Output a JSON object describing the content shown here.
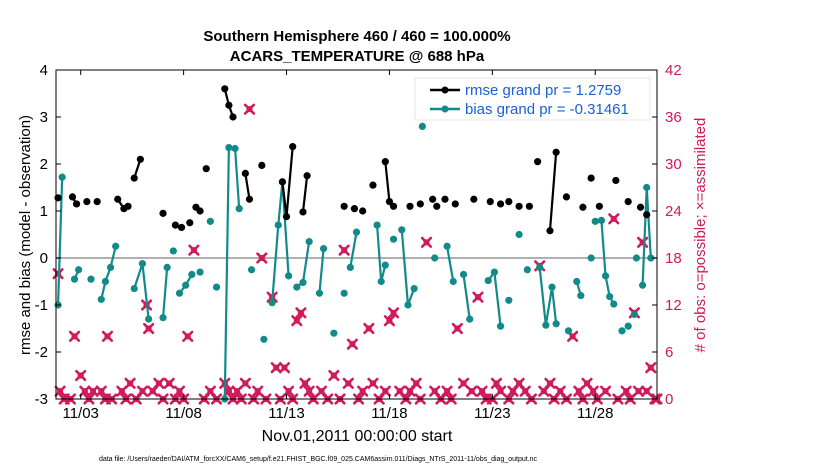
{
  "chart_data": {
    "type": "line",
    "title_line1": "Southern Hemisphere 460 / 460 = 100.000%",
    "title_line2": "ACARS_TEMPERATURE @ 688 hPa",
    "ylabel_left": "rmse and bias (model - observation)",
    "ylabel_right": "# of obs: o=possible; ×=assimilated",
    "xlabel": "Nov.01,2011 00:00:00 start",
    "footnote": "data file: /Users/raeder/DAI/ATM_forcXX/CAM6_setup/f.e21.FHIST_BGC.f09_025.CAM6assim.011/Diags_NTrS_2011-11/obs_diag_output.nc",
    "xlim": [
      1.8,
      31.0
    ],
    "ylim_left": [
      -3,
      4
    ],
    "ylim_right": [
      0,
      42
    ],
    "xticks": [
      3,
      8,
      13,
      18,
      23,
      28
    ],
    "xtick_labels": [
      "11/03",
      "11/08",
      "11/13",
      "11/18",
      "11/23",
      "11/28"
    ],
    "yticks_left": [
      -3,
      -2,
      -1,
      0,
      1,
      2,
      3,
      4
    ],
    "yticks_right": [
      0,
      6,
      12,
      18,
      24,
      30,
      36,
      42
    ],
    "legend": [
      {
        "label": "rmse grand pr = 1.2759",
        "color": "#000000"
      },
      {
        "label": "bias grand pr = -0.31461",
        "color": "#138a8a"
      }
    ],
    "colors": {
      "rmse": "#000000",
      "bias": "#138a8a",
      "obs": "#d01a5a",
      "zero_line": "#b0b0b0"
    },
    "rmse": [
      [
        [
          1.9,
          1.28
        ]
      ],
      [
        [
          2.6,
          1.3
        ],
        [
          2.8,
          1.15
        ]
      ],
      [
        [
          3.3,
          1.2
        ]
      ],
      [
        [
          3.8,
          1.2
        ]
      ],
      [
        [
          4.8,
          1.25
        ],
        [
          5.1,
          1.05
        ],
        [
          5.3,
          1.1
        ]
      ],
      [
        [
          5.6,
          1.7
        ],
        [
          5.9,
          2.1
        ]
      ],
      [
        [
          7.0,
          0.95
        ]
      ],
      [
        [
          7.6,
          0.7
        ],
        [
          7.9,
          0.65
        ]
      ],
      [
        [
          8.3,
          0.75
        ]
      ],
      [
        [
          8.6,
          1.08
        ],
        [
          8.8,
          1.0
        ]
      ],
      [
        [
          9.1,
          1.9
        ]
      ],
      [
        [
          10.0,
          3.6
        ],
        [
          10.2,
          3.25
        ],
        [
          10.4,
          3.0
        ]
      ],
      [
        [
          11.0,
          1.8
        ],
        [
          11.2,
          1.25
        ]
      ],
      [
        [
          11.8,
          1.97
        ]
      ],
      [
        [
          12.8,
          1.62
        ],
        [
          13.0,
          0.88
        ],
        [
          13.3,
          2.37
        ]
      ],
      [
        [
          13.8,
          0.98
        ],
        [
          14.0,
          1.75
        ]
      ],
      [
        [
          15.8,
          1.1
        ]
      ],
      [
        [
          16.3,
          1.05
        ]
      ],
      [
        [
          16.7,
          1.0
        ]
      ],
      [
        [
          17.2,
          1.55
        ]
      ],
      [
        [
          17.8,
          2.05
        ],
        [
          18.0,
          1.2
        ],
        [
          18.2,
          1.1
        ]
      ],
      [
        [
          19.0,
          1.1
        ]
      ],
      [
        [
          19.5,
          1.15
        ]
      ],
      [
        [
          20.1,
          1.25
        ]
      ],
      [
        [
          20.3,
          1.1
        ]
      ],
      [
        [
          20.7,
          1.25
        ]
      ],
      [
        [
          21.2,
          1.15
        ]
      ],
      [
        [
          22.1,
          1.25
        ]
      ],
      [
        [
          22.9,
          1.2
        ]
      ],
      [
        [
          23.4,
          1.15
        ]
      ],
      [
        [
          23.8,
          1.2
        ]
      ],
      [
        [
          24.3,
          1.1
        ]
      ],
      [
        [
          24.8,
          1.1
        ]
      ],
      [
        [
          25.2,
          2.05
        ]
      ],
      [
        [
          25.8,
          0.58
        ],
        [
          26.1,
          2.25
        ]
      ],
      [
        [
          26.6,
          1.3
        ]
      ],
      [
        [
          27.4,
          1.08
        ]
      ],
      [
        [
          27.8,
          1.7
        ]
      ],
      [
        [
          28.2,
          1.1
        ]
      ],
      [
        [
          29.0,
          1.65
        ]
      ],
      [
        [
          29.6,
          1.2
        ]
      ],
      [
        [
          30.2,
          1.08
        ]
      ],
      [
        [
          30.5,
          0.92
        ]
      ]
    ],
    "bias": [
      [
        [
          1.9,
          -1.0
        ],
        [
          2.1,
          1.72
        ]
      ],
      [
        [
          2.7,
          -0.45
        ],
        [
          2.9,
          -0.25
        ]
      ],
      [
        [
          3.5,
          -0.45
        ]
      ],
      [
        [
          4.0,
          -0.88
        ],
        [
          4.2,
          -0.5
        ],
        [
          4.45,
          -0.2
        ],
        [
          4.7,
          0.25
        ]
      ],
      [
        [
          5.6,
          -0.65
        ],
        [
          6.0,
          -0.12
        ],
        [
          6.3,
          -1.3
        ]
      ],
      [
        [
          7.0,
          -1.27
        ],
        [
          7.2,
          -0.2
        ]
      ],
      [
        [
          7.5,
          0.15
        ]
      ],
      [
        [
          7.8,
          -0.75
        ],
        [
          8.1,
          -0.58
        ],
        [
          8.4,
          -0.35
        ]
      ],
      [
        [
          8.8,
          -0.3
        ]
      ],
      [
        [
          9.3,
          0.78
        ]
      ],
      [
        [
          9.6,
          -0.62
        ]
      ],
      [
        [
          10.0,
          -3.0
        ],
        [
          10.2,
          2.35
        ],
        [
          10.5,
          2.33
        ],
        [
          10.7,
          1.05
        ]
      ],
      [
        [
          11.3,
          -0.25
        ]
      ],
      [
        [
          11.9,
          -1.73
        ]
      ],
      [
        [
          12.3,
          -0.95
        ],
        [
          12.6,
          0.7
        ],
        [
          12.8,
          1.62
        ],
        [
          13.1,
          -0.38
        ]
      ],
      [
        [
          13.5,
          -0.62
        ],
        [
          13.8,
          -0.52
        ],
        [
          14.1,
          0.35
        ]
      ],
      [
        [
          14.6,
          -0.75
        ],
        [
          14.8,
          0.2
        ]
      ],
      [
        [
          15.3,
          -1.6
        ]
      ],
      [
        [
          15.8,
          -0.75
        ]
      ],
      [
        [
          16.1,
          -0.2
        ],
        [
          16.4,
          0.55
        ]
      ],
      [
        [
          17.4,
          0.7
        ],
        [
          17.6,
          -0.5
        ],
        [
          17.8,
          -0.15
        ]
      ],
      [
        [
          18.2,
          0.4
        ]
      ],
      [
        [
          18.6,
          0.6
        ],
        [
          18.9,
          -1.0
        ],
        [
          19.2,
          -0.65
        ]
      ],
      [
        [
          19.6,
          2.8
        ]
      ],
      [
        [
          20.2,
          0.0
        ]
      ],
      [
        [
          20.8,
          0.25
        ],
        [
          21.1,
          -0.5
        ]
      ],
      [
        [
          21.6,
          -0.35
        ],
        [
          21.9,
          -1.3
        ]
      ],
      [
        [
          22.8,
          -0.48
        ],
        [
          23.1,
          -0.3
        ],
        [
          23.4,
          -1.45
        ]
      ],
      [
        [
          23.8,
          -0.9
        ]
      ],
      [
        [
          24.3,
          0.5
        ]
      ],
      [
        [
          24.7,
          -0.25
        ]
      ],
      [
        [
          25.3,
          -0.2
        ],
        [
          25.6,
          -1.43
        ],
        [
          25.9,
          -0.62
        ],
        [
          26.1,
          -1.4
        ]
      ],
      [
        [
          26.7,
          -1.55
        ]
      ],
      [
        [
          27.1,
          -0.5
        ],
        [
          27.3,
          -0.8
        ]
      ],
      [
        [
          27.8,
          0.0
        ]
      ],
      [
        [
          28.0,
          0.78
        ],
        [
          28.3,
          0.8
        ],
        [
          28.5,
          -0.38
        ],
        [
          28.7,
          -0.82
        ],
        [
          28.9,
          -0.98
        ]
      ],
      [
        [
          29.3,
          -1.55
        ]
      ],
      [
        [
          29.6,
          -1.45
        ]
      ],
      [
        [
          29.9,
          -1.2
        ]
      ],
      [
        [
          30.0,
          0.0
        ]
      ],
      [
        [
          30.3,
          -0.58
        ],
        [
          30.5,
          1.5
        ],
        [
          30.7,
          0.0
        ]
      ]
    ],
    "obs_assimilated": [
      [
        1.9,
        16
      ],
      [
        2.0,
        1
      ],
      [
        2.2,
        0
      ],
      [
        2.5,
        0
      ],
      [
        2.7,
        8
      ],
      [
        3.0,
        3
      ],
      [
        3.2,
        1
      ],
      [
        3.4,
        0
      ],
      [
        3.6,
        1
      ],
      [
        4.0,
        1
      ],
      [
        4.2,
        0
      ],
      [
        4.3,
        8
      ],
      [
        4.5,
        0
      ],
      [
        5.0,
        1
      ],
      [
        5.2,
        0
      ],
      [
        5.4,
        2
      ],
      [
        5.7,
        0
      ],
      [
        6.0,
        1
      ],
      [
        6.2,
        12
      ],
      [
        6.3,
        9
      ],
      [
        6.5,
        1
      ],
      [
        6.8,
        2
      ],
      [
        7.0,
        0
      ],
      [
        7.3,
        2
      ],
      [
        7.6,
        0
      ],
      [
        7.8,
        1
      ],
      [
        8.0,
        0
      ],
      [
        8.2,
        8
      ],
      [
        8.5,
        19
      ],
      [
        9.0,
        0
      ],
      [
        9.3,
        1
      ],
      [
        9.6,
        0
      ],
      [
        10.0,
        2
      ],
      [
        10.2,
        1
      ],
      [
        10.4,
        0
      ],
      [
        10.6,
        1
      ],
      [
        10.8,
        0
      ],
      [
        11.0,
        2
      ],
      [
        11.2,
        37
      ],
      [
        11.4,
        0
      ],
      [
        11.6,
        1
      ],
      [
        11.8,
        18
      ],
      [
        12.0,
        0
      ],
      [
        12.3,
        13
      ],
      [
        12.5,
        4
      ],
      [
        12.7,
        0
      ],
      [
        12.9,
        4
      ],
      [
        13.1,
        1
      ],
      [
        13.3,
        0
      ],
      [
        13.5,
        10
      ],
      [
        13.7,
        11
      ],
      [
        13.9,
        2
      ],
      [
        14.1,
        1
      ],
      [
        14.3,
        0
      ],
      [
        14.7,
        1
      ],
      [
        15.0,
        0
      ],
      [
        15.3,
        3
      ],
      [
        15.6,
        0
      ],
      [
        15.8,
        19
      ],
      [
        16.0,
        2
      ],
      [
        16.2,
        7
      ],
      [
        16.5,
        0
      ],
      [
        16.7,
        1
      ],
      [
        17.0,
        9
      ],
      [
        17.2,
        2
      ],
      [
        17.5,
        0
      ],
      [
        17.8,
        1
      ],
      [
        18.0,
        10
      ],
      [
        18.2,
        11
      ],
      [
        18.5,
        1
      ],
      [
        18.8,
        0
      ],
      [
        19.0,
        1
      ],
      [
        19.3,
        2
      ],
      [
        19.5,
        0
      ],
      [
        19.8,
        20
      ],
      [
        20.2,
        1
      ],
      [
        20.5,
        0
      ],
      [
        20.8,
        1
      ],
      [
        21.0,
        0
      ],
      [
        21.3,
        9
      ],
      [
        21.6,
        2
      ],
      [
        22.0,
        1
      ],
      [
        22.3,
        13
      ],
      [
        22.5,
        1
      ],
      [
        22.7,
        0
      ],
      [
        23.0,
        0
      ],
      [
        23.2,
        2
      ],
      [
        23.4,
        1
      ],
      [
        23.8,
        0
      ],
      [
        24.0,
        1
      ],
      [
        24.3,
        2
      ],
      [
        24.6,
        1
      ],
      [
        24.9,
        0
      ],
      [
        25.3,
        17
      ],
      [
        25.5,
        1
      ],
      [
        25.8,
        2
      ],
      [
        26.0,
        0
      ],
      [
        26.3,
        1
      ],
      [
        26.6,
        0
      ],
      [
        26.9,
        8
      ],
      [
        27.2,
        1
      ],
      [
        27.4,
        0
      ],
      [
        27.6,
        2
      ],
      [
        27.9,
        1
      ],
      [
        28.1,
        0
      ],
      [
        28.5,
        1
      ],
      [
        28.9,
        23
      ],
      [
        29.1,
        0
      ],
      [
        29.5,
        1
      ],
      [
        29.7,
        0
      ],
      [
        29.9,
        11
      ],
      [
        30.1,
        1
      ],
      [
        30.3,
        20
      ],
      [
        30.5,
        1
      ],
      [
        30.7,
        4
      ],
      [
        30.9,
        0
      ],
      [
        31.0,
        0
      ]
    ]
  }
}
